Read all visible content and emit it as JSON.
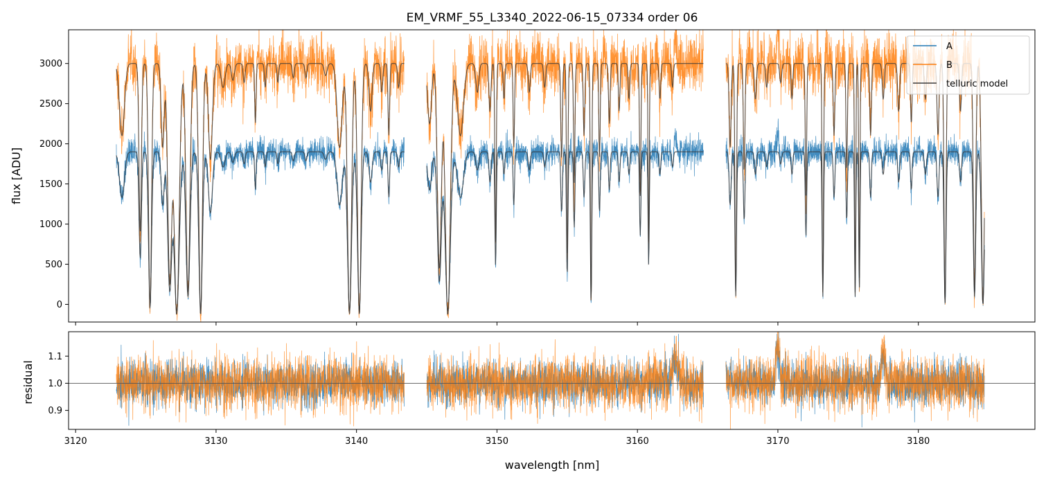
{
  "chart_data": {
    "type": "line",
    "title": "EM_VRMF_55_L3340_2022-06-15_07334  order 06",
    "xlabel": "wavelength [nm]",
    "xlim": [
      3119.5,
      3188.3
    ],
    "xticks": [
      3120,
      3130,
      3140,
      3150,
      3160,
      3170,
      3180
    ],
    "xtick_labels": [
      "3120",
      "3130",
      "3140",
      "3150",
      "3160",
      "3170",
      "3180"
    ],
    "segments": [
      [
        3122.9,
        3143.4
      ],
      [
        3145.0,
        3164.7
      ],
      [
        3166.3,
        3184.7
      ]
    ],
    "colors": {
      "A": "#1f77b4",
      "B": "#ff7f0e",
      "model": "#3a3a3a"
    },
    "top": {
      "ylabel": "flux [ADU]",
      "ylim": [
        -220,
        3420
      ],
      "yticks": [
        0,
        500,
        1000,
        1500,
        2000,
        2500,
        3000
      ],
      "ytick_labels": [
        "0",
        "500",
        "1000",
        "1500",
        "2000",
        "2500",
        "3000"
      ],
      "series": [
        {
          "name": "A",
          "continuum": 1900,
          "noise_frac": 0.045
        },
        {
          "name": "B",
          "continuum": 3000,
          "noise_frac": 0.06
        },
        {
          "name": "telluric model"
        }
      ],
      "absorption_lines": [
        [
          3123.3,
          0.3,
          0.25
        ],
        [
          3124.6,
          0.7,
          0.12
        ],
        [
          3125.3,
          1.02,
          0.15
        ],
        [
          3126.2,
          0.35,
          0.15
        ],
        [
          3126.7,
          0.9,
          0.2
        ],
        [
          3127.2,
          1.05,
          0.25
        ],
        [
          3128.0,
          0.95,
          0.2
        ],
        [
          3128.9,
          1.05,
          0.18
        ],
        [
          3129.6,
          0.4,
          0.2
        ],
        [
          3130.5,
          0.1,
          0.2
        ],
        [
          3131.2,
          0.07,
          0.15
        ],
        [
          3132.0,
          0.08,
          0.1
        ],
        [
          3132.8,
          0.25,
          0.07
        ],
        [
          3133.5,
          0.1,
          0.08
        ],
        [
          3134.4,
          0.08,
          0.08
        ],
        [
          3135.5,
          0.06,
          0.1
        ],
        [
          3136.4,
          0.06,
          0.1
        ],
        [
          3137.8,
          0.05,
          0.15
        ],
        [
          3138.8,
          0.35,
          0.25
        ],
        [
          3139.5,
          1.05,
          0.2
        ],
        [
          3140.2,
          1.05,
          0.18
        ],
        [
          3141.0,
          0.2,
          0.15
        ],
        [
          3141.8,
          0.12,
          0.1
        ],
        [
          3142.3,
          0.3,
          0.08
        ],
        [
          3143.0,
          0.1,
          0.1
        ],
        [
          3145.2,
          0.25,
          0.2
        ],
        [
          3145.9,
          0.85,
          0.2
        ],
        [
          3146.5,
          1.05,
          0.25
        ],
        [
          3147.4,
          0.3,
          0.3
        ],
        [
          3148.6,
          0.12,
          0.15
        ],
        [
          3149.5,
          0.2,
          0.1
        ],
        [
          3149.9,
          0.75,
          0.07
        ],
        [
          3150.5,
          0.15,
          0.08
        ],
        [
          3151.2,
          0.35,
          0.07
        ],
        [
          3152.3,
          0.12,
          0.1
        ],
        [
          3153.4,
          0.1,
          0.1
        ],
        [
          3154.6,
          0.4,
          0.08
        ],
        [
          3155.0,
          0.82,
          0.07
        ],
        [
          3155.5,
          0.5,
          0.07
        ],
        [
          3156.2,
          0.3,
          0.08
        ],
        [
          3156.7,
          1.0,
          0.07
        ],
        [
          3157.3,
          0.4,
          0.07
        ],
        [
          3158.0,
          0.25,
          0.08
        ],
        [
          3158.7,
          0.2,
          0.08
        ],
        [
          3159.4,
          0.15,
          0.08
        ],
        [
          3160.2,
          0.55,
          0.07
        ],
        [
          3160.8,
          0.75,
          0.06
        ],
        [
          3161.6,
          0.15,
          0.08
        ],
        [
          3162.5,
          0.1,
          0.08
        ],
        [
          3166.6,
          0.35,
          0.1
        ],
        [
          3167.0,
          0.95,
          0.08
        ],
        [
          3167.6,
          0.45,
          0.08
        ],
        [
          3168.4,
          0.15,
          0.1
        ],
        [
          3169.2,
          0.1,
          0.1
        ],
        [
          3170.2,
          0.08,
          0.1
        ],
        [
          3171.0,
          0.15,
          0.08
        ],
        [
          3172.0,
          0.55,
          0.07
        ],
        [
          3173.2,
          0.95,
          0.07
        ],
        [
          3174.0,
          0.3,
          0.08
        ],
        [
          3174.9,
          0.45,
          0.07
        ],
        [
          3175.5,
          0.95,
          0.06
        ],
        [
          3175.8,
          0.9,
          0.06
        ],
        [
          3176.6,
          0.3,
          0.08
        ],
        [
          3177.5,
          0.15,
          0.1
        ],
        [
          3178.6,
          0.2,
          0.1
        ],
        [
          3179.5,
          0.25,
          0.08
        ],
        [
          3180.5,
          0.15,
          0.1
        ],
        [
          3181.4,
          0.3,
          0.1
        ],
        [
          3181.9,
          1.0,
          0.1
        ],
        [
          3183.0,
          0.2,
          0.1
        ],
        [
          3184.0,
          0.95,
          0.12
        ],
        [
          3184.6,
          1.0,
          0.15
        ]
      ],
      "emission_features": [
        [
          3162.7,
          0.08,
          0.15
        ],
        [
          3170.0,
          0.12,
          0.12
        ],
        [
          3177.5,
          0.1,
          0.1
        ]
      ]
    },
    "bottom": {
      "ylabel": "residual",
      "ylim": [
        0.83,
        1.19
      ],
      "yticks": [
        0.9,
        1.0,
        1.1
      ],
      "ytick_labels": [
        "0.9",
        "1.0",
        "1.1"
      ],
      "reference_line": 1.0,
      "noise_A": 0.04,
      "noise_B": 0.05,
      "bumps": [
        [
          3162.7,
          0.1,
          0.3
        ],
        [
          3170.0,
          0.15,
          0.2
        ],
        [
          3177.5,
          0.12,
          0.2
        ]
      ]
    }
  },
  "legend": {
    "items": [
      {
        "key": "A",
        "label": "A"
      },
      {
        "key": "B",
        "label": "B"
      },
      {
        "key": "model",
        "label": "telluric model"
      }
    ]
  }
}
